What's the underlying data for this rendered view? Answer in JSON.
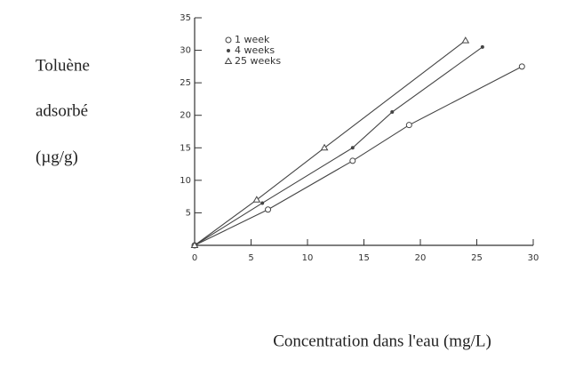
{
  "chart_data": {
    "type": "line",
    "ylabel": [
      "Toluène",
      "adsorbé",
      "(µg/g)"
    ],
    "xlabel": "Concentration dans l'eau (mg/L)",
    "xlim": [
      0,
      30
    ],
    "xticks": [
      0,
      5,
      10,
      15,
      20,
      25,
      30
    ],
    "ylim": [
      0,
      35
    ],
    "yticks": [
      5,
      10,
      15,
      20,
      25,
      30,
      35
    ],
    "series": [
      {
        "name": "1 week",
        "marker": "circle",
        "color": "#444",
        "x": [
          0,
          6.5,
          14,
          19,
          29
        ],
        "values": [
          0,
          5.5,
          13,
          18.5,
          27.5
        ]
      },
      {
        "name": "4 weeks",
        "marker": "dot",
        "color": "#444",
        "x": [
          0,
          6,
          14,
          17.5,
          25.5
        ],
        "values": [
          0,
          6.5,
          15,
          20.5,
          30.5
        ]
      },
      {
        "name": "25 weeks",
        "marker": "triangle",
        "color": "#444",
        "x": [
          0,
          5.5,
          11.5,
          24
        ],
        "values": [
          0,
          7,
          15,
          31.5
        ]
      }
    ]
  }
}
